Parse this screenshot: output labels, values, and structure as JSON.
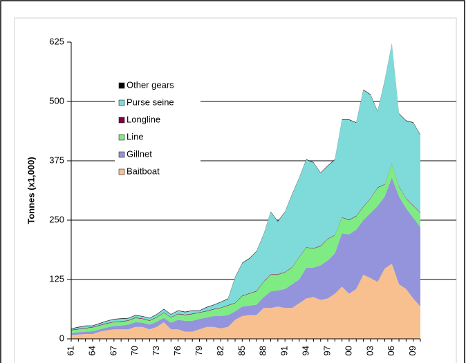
{
  "chart_data": {
    "type": "stacked-area",
    "ylabel": "Tonnes (x1,000)",
    "categories": [
      "61",
      null,
      null,
      "64",
      null,
      null,
      "67",
      null,
      null,
      "70",
      null,
      null,
      "73",
      null,
      null,
      "76",
      null,
      null,
      "79",
      null,
      null,
      "82",
      null,
      null,
      "85",
      null,
      null,
      "88",
      null,
      null,
      "91",
      null,
      null,
      "94",
      null,
      null,
      "97",
      null,
      null,
      "00",
      null,
      null,
      "03",
      null,
      null,
      "06",
      null,
      null,
      "09",
      null
    ],
    "series": [
      {
        "name": "Baitboat",
        "color": "#f9c08f",
        "values": [
          8,
          9,
          10,
          10,
          15,
          18,
          20,
          20,
          20,
          25,
          25,
          20,
          25,
          35,
          20,
          20,
          15,
          15,
          20,
          25,
          25,
          22,
          25,
          40,
          48,
          50,
          50,
          65,
          65,
          68,
          65,
          65,
          75,
          85,
          88,
          82,
          85,
          95,
          110,
          95,
          105,
          135,
          128,
          120,
          148,
          158,
          115,
          105,
          85,
          68
        ]
      },
      {
        "name": "Gillnet",
        "color": "#9494dc",
        "values": [
          4,
          5,
          5,
          6,
          5,
          6,
          7,
          8,
          10,
          10,
          9,
          10,
          11,
          9,
          14,
          20,
          23,
          23,
          22,
          20,
          23,
          26,
          25,
          18,
          20,
          20,
          22,
          23,
          35,
          34,
          40,
          50,
          50,
          65,
          62,
          73,
          80,
          85,
          112,
          125,
          125,
          115,
          137,
          160,
          152,
          182,
          185,
          170,
          170,
          167
        ]
      },
      {
        "name": "Line",
        "color": "#7eec82",
        "values": [
          6,
          6,
          7,
          8,
          8,
          8,
          8,
          8,
          8,
          9,
          8,
          8,
          9,
          11,
          11,
          12,
          12,
          14,
          13,
          13,
          14,
          17,
          20,
          17,
          22,
          25,
          28,
          32,
          35,
          33,
          35,
          35,
          47,
          42,
          40,
          40,
          45,
          38,
          33,
          30,
          28,
          28,
          30,
          38,
          25,
          28,
          20,
          20,
          25,
          30
        ]
      },
      {
        "name": "Longline",
        "color": "#800040",
        "values": [
          1,
          1,
          1,
          1,
          1,
          1,
          1,
          1,
          1,
          1,
          1,
          1,
          1,
          1,
          1,
          1,
          1,
          1,
          1,
          1,
          1,
          1,
          1,
          1,
          1,
          1,
          1,
          1,
          1,
          1,
          1,
          1,
          1,
          1,
          1,
          1,
          1,
          1,
          1,
          1,
          1,
          1,
          1,
          1,
          1,
          1,
          1,
          1,
          1,
          1
        ]
      },
      {
        "name": "Purse seine",
        "color": "#7edbd9",
        "values": [
          2,
          3,
          4,
          2,
          3,
          4,
          5,
          5,
          4,
          4,
          4,
          4,
          5,
          6,
          5,
          6,
          5,
          6,
          3,
          7,
          8,
          11,
          13,
          53,
          68,
          73,
          83,
          98,
          131,
          111,
          126,
          153,
          166,
          184,
          180,
          153,
          153,
          158,
          205,
          210,
          196,
          245,
          218,
          160,
          218,
          252,
          153,
          163,
          174,
          163
        ]
      },
      {
        "name": "Other gears",
        "color": "#000000",
        "values": [
          1,
          1,
          1,
          1,
          1,
          1,
          1,
          1,
          1,
          1,
          1,
          1,
          1,
          1,
          1,
          1,
          1,
          1,
          1,
          1,
          1,
          1,
          1,
          1,
          1,
          1,
          1,
          1,
          1,
          1,
          1,
          1,
          1,
          1,
          1,
          1,
          1,
          1,
          1,
          1,
          1,
          1,
          1,
          1,
          1,
          1,
          1,
          1,
          1,
          1
        ]
      }
    ],
    "ylim": [
      0,
      625
    ],
    "yticks": [
      0,
      125,
      250,
      375,
      500,
      625
    ],
    "grid": true
  }
}
